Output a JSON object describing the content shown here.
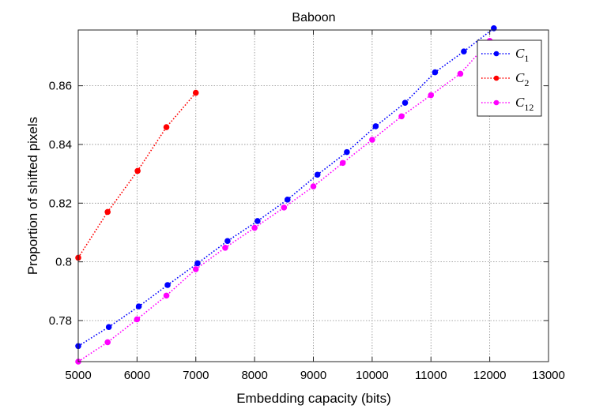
{
  "chart_data": {
    "type": "line",
    "title": "Baboon",
    "xlabel": "Embedding capacity (bits)",
    "ylabel": "Proportion of shifted pixels",
    "xlim": [
      5000,
      13000
    ],
    "ylim": [
      0.766,
      0.879
    ],
    "x_ticks": [
      5000,
      6000,
      7000,
      8000,
      9000,
      10000,
      11000,
      12000,
      13000
    ],
    "x_tick_labels": [
      "5000",
      "6000",
      "7000",
      "8000",
      "9000",
      "10000",
      "11000",
      "12000",
      "13000"
    ],
    "y_ticks": [
      0.78,
      0.8,
      0.82,
      0.84,
      0.86
    ],
    "y_tick_labels": [
      "0.78",
      "0.8",
      "0.82",
      "0.84",
      "0.86"
    ],
    "grid": true,
    "legend_position": "top-right",
    "series": [
      {
        "name": "C",
        "subscript": "1",
        "color": "#0000ff",
        "x": [
          5000,
          5520,
          6030,
          6520,
          7030,
          7540,
          8050,
          8560,
          9070,
          9570,
          10060,
          10560,
          11070,
          11560,
          12070
        ],
        "y": [
          0.7713,
          0.7778,
          0.7848,
          0.7921,
          0.7995,
          0.8071,
          0.8139,
          0.8212,
          0.8297,
          0.8374,
          0.8462,
          0.8542,
          0.8646,
          0.8717,
          0.8796
        ]
      },
      {
        "name": "C",
        "subscript": "2",
        "color": "#ff0000",
        "x": [
          5000,
          5500,
          6010,
          6500,
          7000
        ],
        "y": [
          0.8014,
          0.817,
          0.831,
          0.8459,
          0.8576
        ]
      },
      {
        "name": "C",
        "subscript": "12",
        "color": "#ff00ff",
        "x": [
          5000,
          5500,
          6000,
          6500,
          7000,
          7500,
          8000,
          8500,
          9000,
          9500,
          10000,
          10500,
          11000,
          11500,
          12000
        ],
        "y": [
          0.766,
          0.7726,
          0.7804,
          0.7885,
          0.7975,
          0.8048,
          0.8116,
          0.8185,
          0.8257,
          0.8337,
          0.8416,
          0.8496,
          0.8568,
          0.8641,
          0.8753
        ]
      }
    ]
  }
}
